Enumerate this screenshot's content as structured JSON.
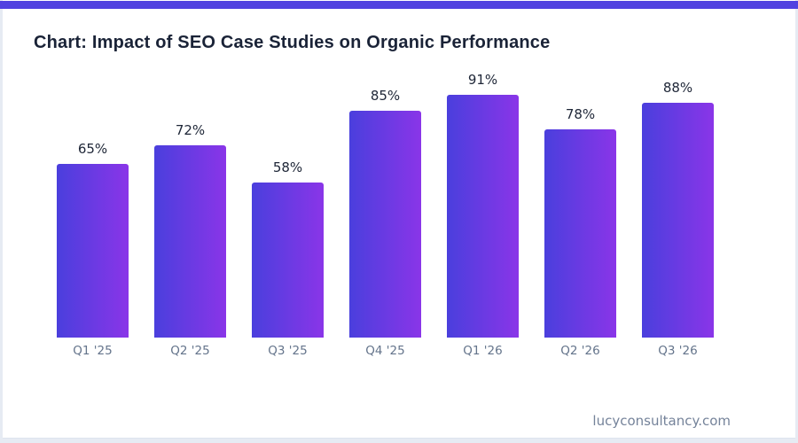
{
  "page": {
    "title": "Chart: Impact of SEO Case Studies on Organic Performance",
    "footer": "lucyconsultancy.com",
    "colors": {
      "accent_bar": "#5142e0",
      "title": "#1a2337",
      "value_label": "#1e2637",
      "category_label": "#64748b",
      "footer_text": "#75839a",
      "bar_gradient_start": "#4a3fdd",
      "bar_gradient_end": "#8a35e8",
      "card_background": "#ffffff",
      "page_background": "#e6ebf3"
    }
  },
  "chart_data": {
    "type": "bar",
    "title": "Chart: Impact of SEO Case Studies on Organic Performance",
    "categories": [
      "Q1 '25",
      "Q2 '25",
      "Q3 '25",
      "Q4 '25",
      "Q1 '26",
      "Q2 '26",
      "Q3 '26"
    ],
    "values": [
      65,
      72,
      58,
      85,
      91,
      78,
      88
    ],
    "value_labels": [
      "65%",
      "72%",
      "58%",
      "85%",
      "91%",
      "78%",
      "88%"
    ],
    "unit": "%",
    "xlabel": "",
    "ylabel": "",
    "ylim": [
      0,
      100
    ],
    "grid": false,
    "legend": "none",
    "axes_shown": false,
    "bar_orientation": "vertical"
  }
}
